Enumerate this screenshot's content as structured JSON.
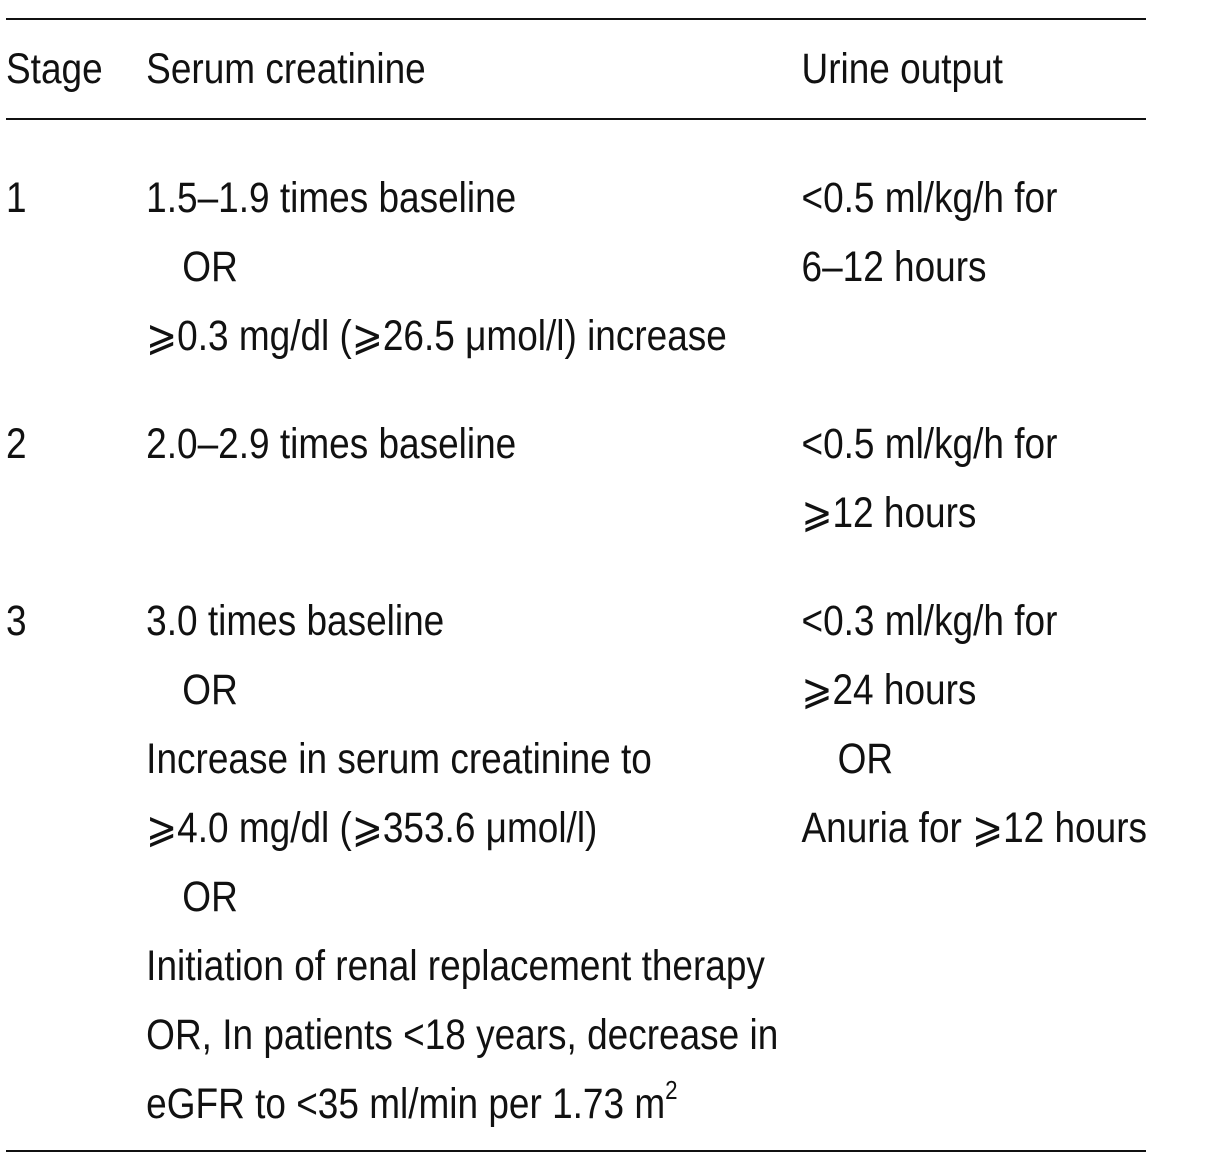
{
  "table": {
    "headers": {
      "stage": "Stage",
      "serum_creatinine": "Serum creatinine",
      "urine_output": "Urine output"
    },
    "rows": [
      {
        "stage": "1",
        "serum_creatinine": [
          "1.5–1.9 times baseline",
          "OR",
          "⩾0.3 mg/dl (⩾26.5 μmol/l) increase"
        ],
        "urine_output": [
          "<0.5 ml/kg/h for",
          "6–12 hours"
        ]
      },
      {
        "stage": "2",
        "serum_creatinine": [
          "2.0–2.9 times baseline"
        ],
        "urine_output": [
          "<0.5 ml/kg/h for",
          "⩾12 hours"
        ]
      },
      {
        "stage": "3",
        "serum_creatinine": [
          "3.0 times baseline",
          "OR",
          "Increase in serum creatinine to",
          "⩾4.0 mg/dl (⩾353.6 μmol/l)",
          "OR",
          "Initiation of renal replacement therapy",
          "OR, In patients <18 years, decrease in",
          "eGFR to <35 ml/min per 1.73 m",
          "2"
        ],
        "urine_output": [
          "<0.3 ml/kg/h for",
          "⩾24 hours",
          "OR",
          "Anuria for ⩾12 hours"
        ]
      }
    ]
  }
}
